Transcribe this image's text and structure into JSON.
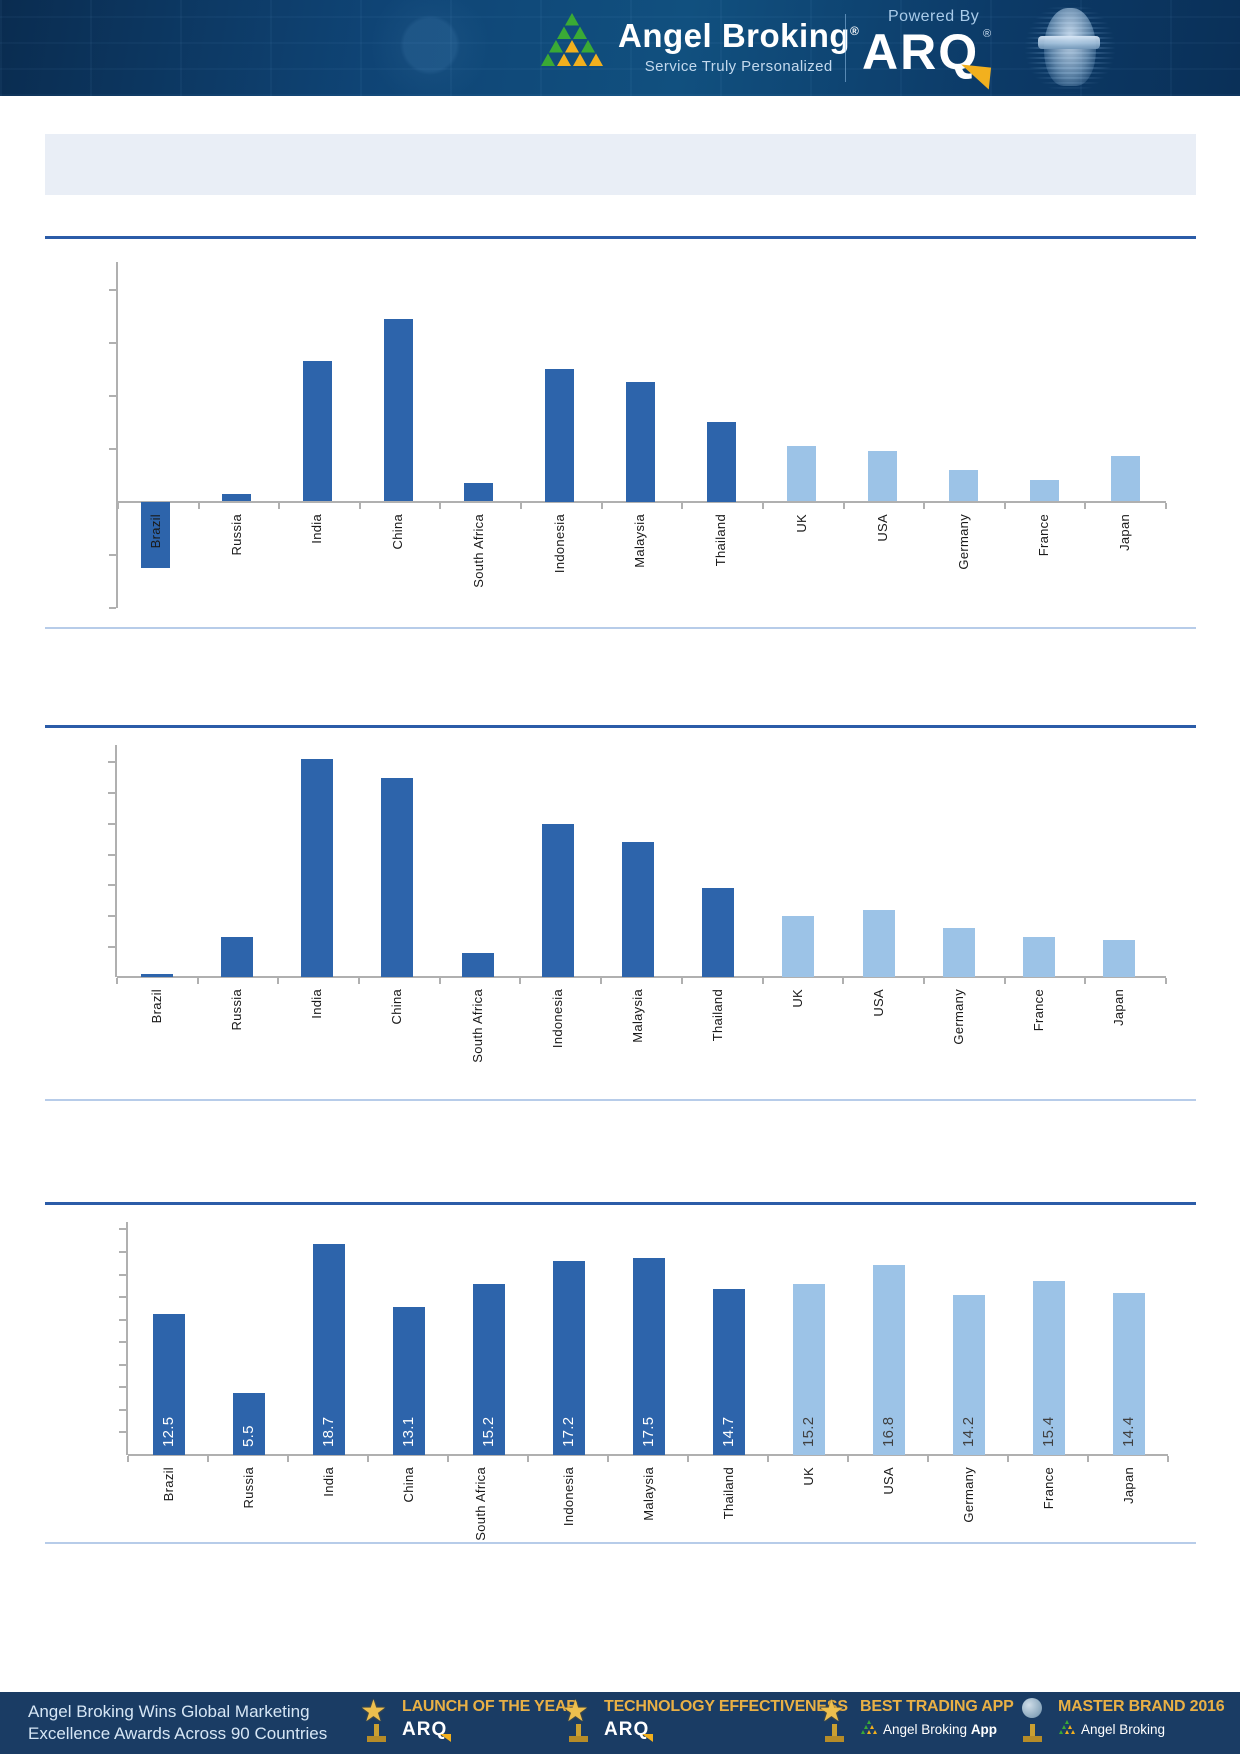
{
  "header": {
    "brand": "Angel Broking",
    "registered_mark": "®",
    "tagline": "Service Truly Personalized",
    "powered_by": "Powered By",
    "arq_logo": "ARQ"
  },
  "banner": {
    "text": ""
  },
  "sections": [
    {
      "title": ""
    },
    {
      "title": ""
    },
    {
      "title": ""
    }
  ],
  "chart_data": [
    {
      "type": "bar",
      "title": "",
      "xlabel": "",
      "ylabel": "",
      "categories": [
        "Brazil",
        "Russia",
        "India",
        "China",
        "South Africa",
        "Indonesia",
        "Malaysia",
        "Thailand",
        "UK",
        "USA",
        "Germany",
        "France",
        "Japan"
      ],
      "values": [
        -2.5,
        0.3,
        5.3,
        6.9,
        0.7,
        5.0,
        4.5,
        3.0,
        2.1,
        1.9,
        1.2,
        0.8,
        1.7
      ],
      "ylim": [
        -4,
        8
      ],
      "ytick_step": 2,
      "grid": false,
      "legend": null,
      "value_labels": null,
      "emerging_count": 8,
      "colors": {
        "emerging": "#2d64ab",
        "developed": "#9cc3e7"
      },
      "x_label_rotation_deg": 90,
      "south_africa_two_line": false
    },
    {
      "type": "bar",
      "title": "",
      "xlabel": "",
      "ylabel": "",
      "categories": [
        "Brazil",
        "Russia",
        "India",
        "China",
        "South Africa",
        "Indonesia",
        "Malaysia",
        "Thailand",
        "UK",
        "USA",
        "Germany",
        "France",
        "Japan"
      ],
      "values": [
        0.1,
        1.3,
        7.1,
        6.5,
        0.8,
        5.0,
        4.4,
        2.9,
        2.0,
        2.2,
        1.6,
        1.3,
        1.2
      ],
      "ylim": [
        0,
        8
      ],
      "ytick_step": 1,
      "grid": false,
      "legend": null,
      "value_labels": null,
      "emerging_count": 8,
      "colors": {
        "emerging": "#2d64ab",
        "developed": "#9cc3e7"
      },
      "x_label_rotation_deg": 90,
      "south_africa_two_line": false
    },
    {
      "type": "bar",
      "title": "",
      "xlabel": "",
      "ylabel": "",
      "categories": [
        "Brazil",
        "Russia",
        "India",
        "China",
        "South Africa",
        "Indonesia",
        "Malaysia",
        "Thailand",
        "UK",
        "USA",
        "Germany",
        "France",
        "Japan"
      ],
      "values": [
        12.5,
        5.5,
        18.7,
        13.1,
        15.2,
        17.2,
        17.5,
        14.7,
        15.2,
        16.8,
        14.2,
        15.4,
        14.4
      ],
      "ylim": [
        0,
        21
      ],
      "ytick_step": 2,
      "grid": false,
      "legend": null,
      "value_labels": [
        "12.5",
        "5.5",
        "18.7",
        "13.1",
        "15.2",
        "17.2",
        "17.5",
        "14.7",
        "15.2",
        "16.8",
        "14.2",
        "15.4",
        "14.4"
      ],
      "value_label_colors": {
        "on_emerging": "#ffffff",
        "on_developed": "#3f3f3f"
      },
      "emerging_count": 8,
      "colors": {
        "emerging": "#2d64ab",
        "developed": "#9cc3e7"
      },
      "x_label_rotation_deg": 90,
      "south_africa_two_line": true
    }
  ],
  "footer": {
    "headline_line1": "Angel Broking Wins Global Marketing",
    "headline_line2": "Excellence Awards Across 90 Countries",
    "awards": [
      {
        "icon": "star-trophy-icon",
        "title": "LAUNCH OF THE YEAR",
        "subtitle": "ARQ",
        "subtitle_bold_suffix": "",
        "subtitle_style": "arq"
      },
      {
        "icon": "star-trophy-icon",
        "title": "TECHNOLOGY EFFECTIVENESS",
        "subtitle": "ARQ",
        "subtitle_bold_suffix": "",
        "subtitle_style": "arq"
      },
      {
        "icon": "star-trophy-icon",
        "title": "BEST TRADING APP",
        "subtitle": "Angel Broking",
        "subtitle_bold_suffix": "App",
        "subtitle_style": "brand"
      },
      {
        "icon": "globe-trophy-icon",
        "title": "MASTER BRAND 2016",
        "subtitle": "Angel Broking",
        "subtitle_bold_suffix": "",
        "subtitle_style": "brand"
      }
    ]
  }
}
